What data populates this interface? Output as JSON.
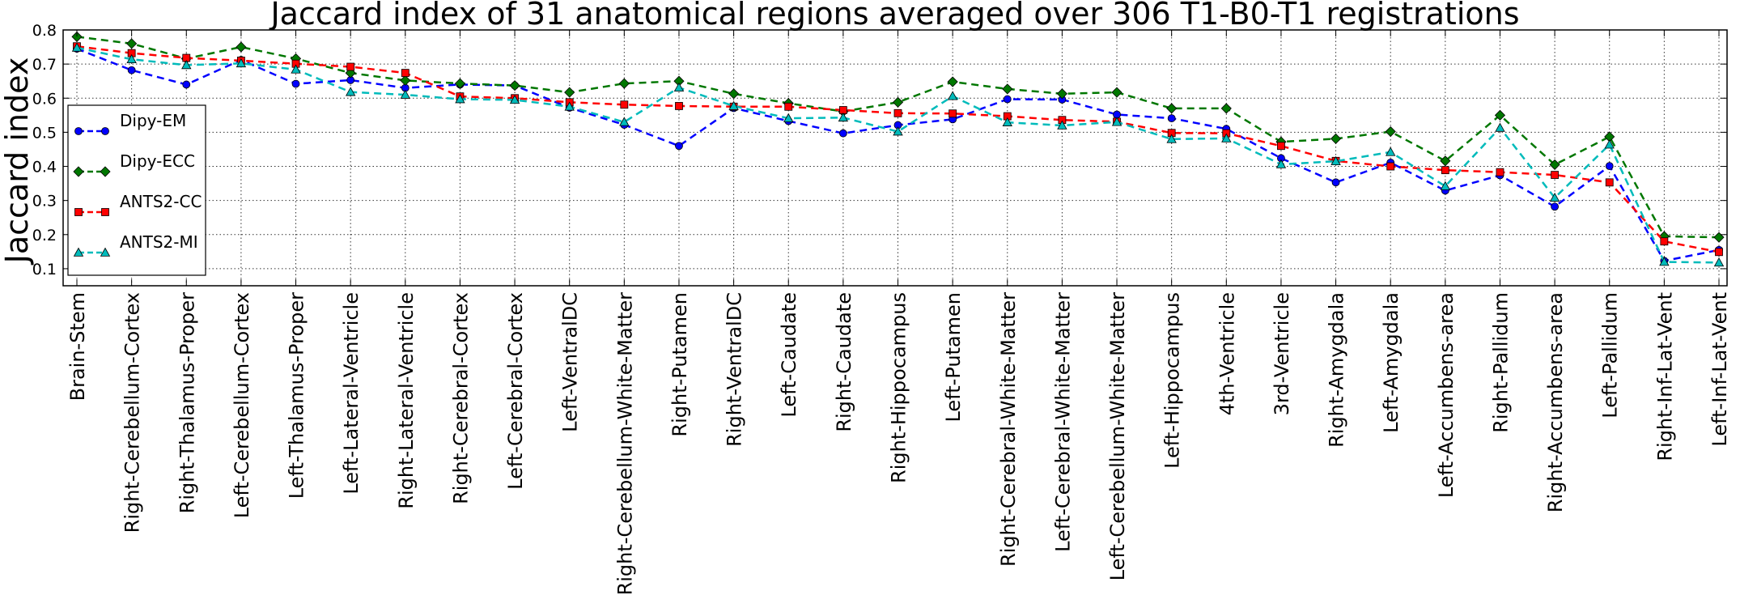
{
  "chart_data": {
    "type": "line",
    "title": "Jaccard index of 31 anatomical regions averaged over 306 T1-B0-T1 registrations",
    "xlabel": "",
    "ylabel": "Jaccard index",
    "ylim": [
      0.05,
      0.8
    ],
    "yticks": [
      0.1,
      0.2,
      0.3,
      0.4,
      0.5,
      0.6,
      0.7,
      0.8
    ],
    "grid": true,
    "legend_position": "center-left",
    "categories": [
      "Brain-Stem",
      "Right-Cerebellum-Cortex",
      "Right-Thalamus-Proper",
      "Left-Cerebellum-Cortex",
      "Left-Thalamus-Proper",
      "Left-Lateral-Ventricle",
      "Right-Lateral-Ventricle",
      "Right-Cerebral-Cortex",
      "Left-Cerebral-Cortex",
      "Left-VentralDC",
      "Right-Cerebellum-White-Matter",
      "Right-Putamen",
      "Right-VentralDC",
      "Left-Caudate",
      "Right-Caudate",
      "Right-Hippocampus",
      "Left-Putamen",
      "Right-Cerebral-White-Matter",
      "Left-Cerebral-White-Matter",
      "Left-Cerebellum-White-Matter",
      "Left-Hippocampus",
      "4th-Ventricle",
      "3rd-Ventricle",
      "Right-Amygdala",
      "Left-Amygdala",
      "Left-Accumbens-area",
      "Right-Pallidum",
      "Right-Accumbens-area",
      "Left-Pallidum",
      "Right-Inf-Lat-Vent",
      "Left-Inf-Lat-Vent"
    ],
    "series": [
      {
        "name": "Dipy-EM",
        "color": "#0000ff",
        "marker": "circle",
        "values": [
          0.745,
          0.682,
          0.64,
          0.712,
          0.642,
          0.653,
          0.63,
          0.64,
          0.637,
          0.572,
          0.522,
          0.46,
          0.571,
          0.533,
          0.497,
          0.521,
          0.538,
          0.597,
          0.596,
          0.552,
          0.541,
          0.51,
          0.424,
          0.353,
          0.411,
          0.329,
          0.374,
          0.282,
          0.401,
          0.123,
          0.155
        ]
      },
      {
        "name": "Dipy-ECC",
        "color": "#007700",
        "marker": "diamond",
        "values": [
          0.78,
          0.76,
          0.716,
          0.75,
          0.716,
          0.674,
          0.652,
          0.643,
          0.637,
          0.617,
          0.643,
          0.65,
          0.613,
          0.585,
          0.561,
          0.588,
          0.648,
          0.627,
          0.613,
          0.617,
          0.57,
          0.57,
          0.472,
          0.481,
          0.502,
          0.416,
          0.55,
          0.405,
          0.487,
          0.195,
          0.192
        ]
      },
      {
        "name": "ANTS2-CC",
        "color": "#ff0000",
        "marker": "square",
        "values": [
          0.752,
          0.732,
          0.718,
          0.71,
          0.701,
          0.692,
          0.674,
          0.605,
          0.6,
          0.588,
          0.581,
          0.577,
          0.575,
          0.575,
          0.565,
          0.556,
          0.555,
          0.547,
          0.536,
          0.531,
          0.498,
          0.497,
          0.46,
          0.416,
          0.4,
          0.389,
          0.383,
          0.375,
          0.353,
          0.18,
          0.149
        ]
      },
      {
        "name": "ANTS2-MI",
        "color": "#00bbbb",
        "marker": "triangle",
        "values": [
          0.748,
          0.714,
          0.697,
          0.702,
          0.684,
          0.618,
          0.61,
          0.597,
          0.595,
          0.575,
          0.53,
          0.631,
          0.577,
          0.541,
          0.543,
          0.502,
          0.606,
          0.529,
          0.52,
          0.53,
          0.48,
          0.482,
          0.406,
          0.415,
          0.442,
          0.342,
          0.513,
          0.308,
          0.464,
          0.12,
          0.118
        ]
      }
    ]
  }
}
